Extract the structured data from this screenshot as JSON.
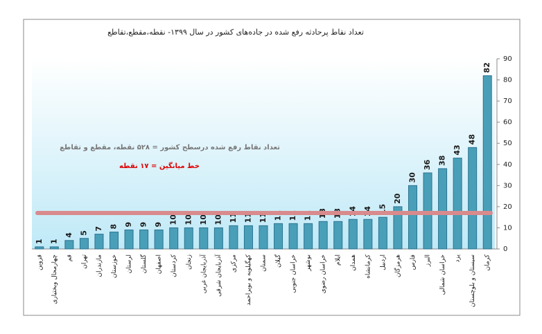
{
  "chart_data": {
    "type": "bar",
    "title": "تعداد نقاط پرحادثه رفع شده در جاده‌های کشور در سال ۱۳۹۹- نقطه،مقطع،تقاطع",
    "annotations": [
      "تعداد نقاط رفع شده درسطح کشور = ۵۲۸ نقطه، مقطع و تقاطع",
      "خط میانگین = ۱۷ نقطه"
    ],
    "mean_line": 17,
    "categories": [
      "قزوین",
      "چهارمحال وبختیاری",
      "قم",
      "تهران",
      "مازندران",
      "خوزستان",
      "لرستان",
      "گلستان",
      "اصفهان",
      "کردستان",
      "زنجان",
      "آذربایجان غربی",
      "آذربایجان شرقی",
      "مرکزی",
      "کهگیلویه و بویراحمد",
      "سمنان",
      "گیلان",
      "خراسان جنوبی",
      "بوشهر",
      "خراسان رضوی",
      "ایلام",
      "همدان",
      "کرمانشاه",
      "اردبیل",
      "هرمزگان",
      "فارس",
      "البرز",
      "خراسان شمالی",
      "یزد",
      "سیستان و بلوچستان",
      "کرمان"
    ],
    "values": [
      1,
      1,
      4,
      5,
      7,
      8,
      9,
      9,
      9,
      10,
      10,
      10,
      10,
      11,
      11,
      11,
      12,
      12,
      12,
      13,
      13,
      14,
      14,
      15,
      20,
      30,
      36,
      38,
      43,
      48,
      82
    ],
    "color": "#4a9fb8",
    "ylim": [
      0,
      90
    ],
    "yticks": [
      0,
      10,
      20,
      30,
      40,
      50,
      60,
      70,
      80,
      90
    ],
    "grid": false
  }
}
